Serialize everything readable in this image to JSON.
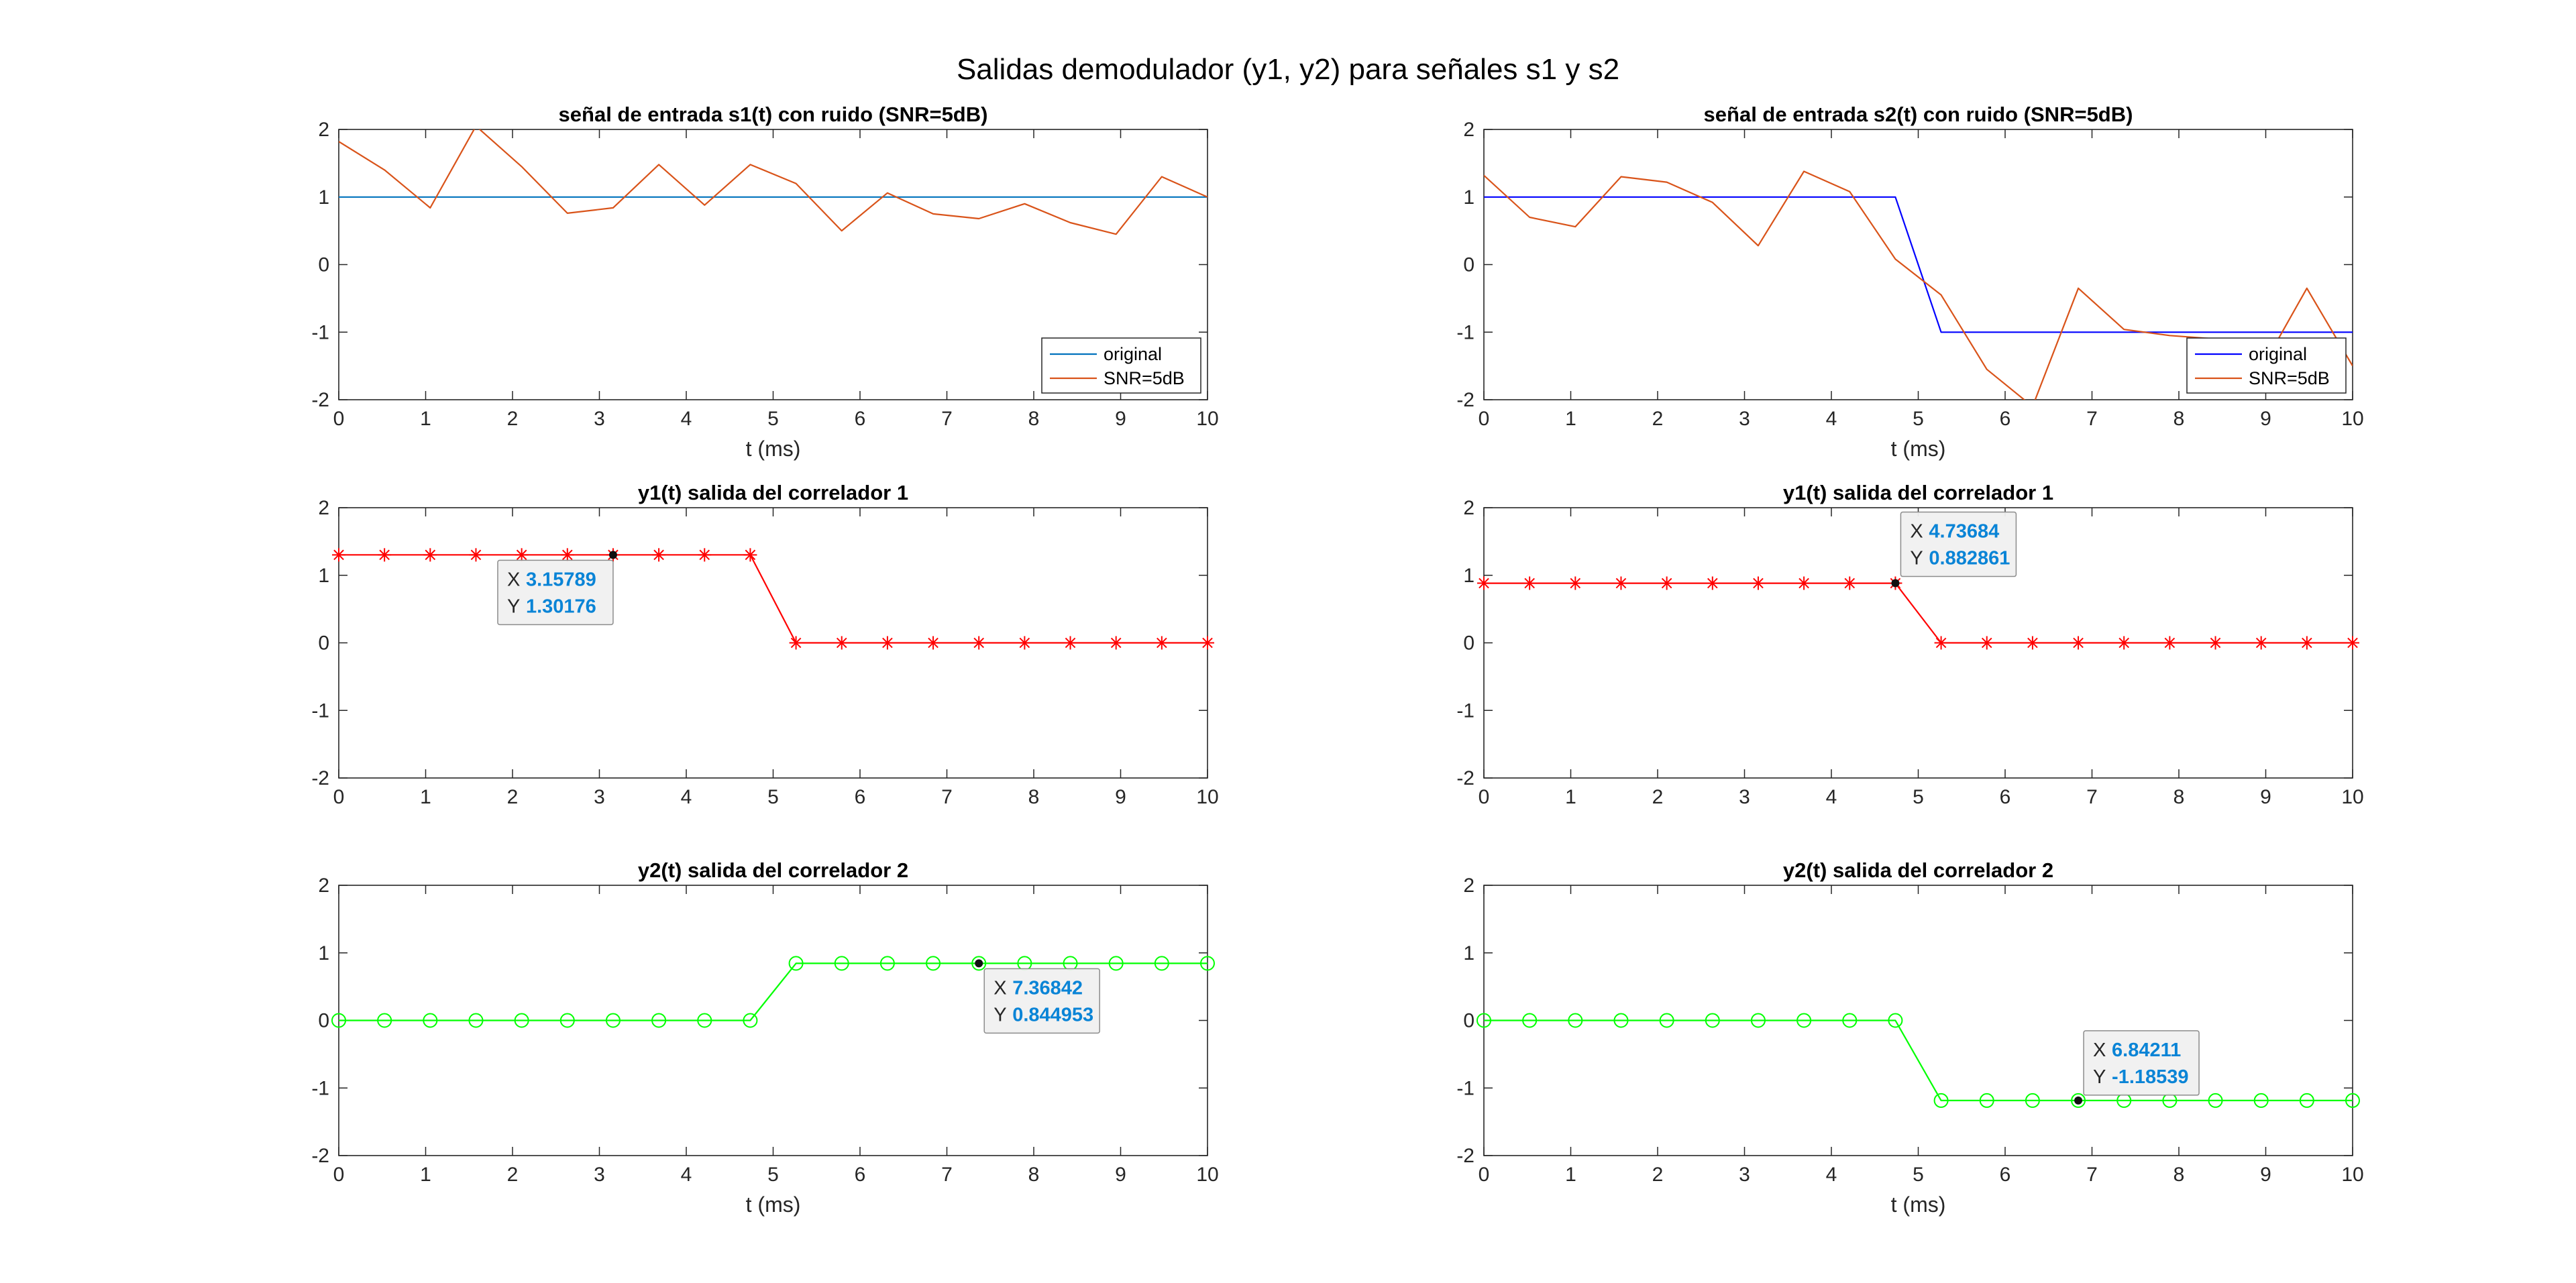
{
  "figure": {
    "suptitle": "Salidas demodulador (y1, y2) para señales s1 y s2"
  },
  "chart_data": [
    {
      "type": "line",
      "title": "señal de entrada s1(t) con ruido (SNR=5dB)",
      "xlabel": "t (ms)",
      "ylabel": "",
      "xlim": [
        0,
        10
      ],
      "ylim": [
        -2,
        2
      ],
      "xticks": [
        "0",
        "1",
        "2",
        "3",
        "4",
        "5",
        "6",
        "7",
        "8",
        "9",
        "10"
      ],
      "yticks": [
        "-2",
        "-1",
        "0",
        "1",
        "2"
      ],
      "grid": false,
      "legend_position": "bottom-right",
      "series": [
        {
          "name": "original",
          "color": "#0072bd",
          "x": [
            0,
            10
          ],
          "y": [
            1,
            1
          ]
        },
        {
          "name": "SNR=5dB",
          "color": "#d95319",
          "x": [
            0,
            0.5263,
            1.0526,
            1.5789,
            2.1053,
            2.6316,
            3.1579,
            3.6842,
            4.2105,
            4.7368,
            5.2632,
            5.7895,
            6.3158,
            6.8421,
            7.3684,
            7.8947,
            8.4211,
            8.9474,
            9.4737,
            10
          ],
          "y": [
            1.82,
            1.4,
            0.84,
            2.05,
            1.45,
            0.76,
            0.84,
            1.48,
            0.88,
            1.48,
            1.2,
            0.5,
            1.06,
            0.75,
            0.68,
            0.9,
            0.62,
            0.45,
            1.3,
            1.0
          ]
        }
      ]
    },
    {
      "type": "line",
      "title": "señal de entrada s2(t) con ruido (SNR=5dB)",
      "xlabel": "t (ms)",
      "ylabel": "",
      "xlim": [
        0,
        10
      ],
      "ylim": [
        -2,
        2
      ],
      "xticks": [
        "0",
        "1",
        "2",
        "3",
        "4",
        "5",
        "6",
        "7",
        "8",
        "9",
        "10"
      ],
      "yticks": [
        "-2",
        "-1",
        "0",
        "1",
        "2"
      ],
      "grid": false,
      "legend_position": "bottom-right",
      "series": [
        {
          "name": "original",
          "color": "#0000ff",
          "x": [
            0,
            4.7368,
            5.2632,
            10
          ],
          "y": [
            1,
            1,
            -1,
            -1
          ]
        },
        {
          "name": "SNR=5dB",
          "color": "#d95319",
          "x": [
            0,
            0.5263,
            1.0526,
            1.5789,
            2.1053,
            2.6316,
            3.1579,
            3.6842,
            4.2105,
            4.7368,
            5.2632,
            5.7895,
            6.3158,
            6.8421,
            7.3684,
            7.8947,
            8.4211,
            8.9474,
            9.4737,
            10
          ],
          "y": [
            1.32,
            0.7,
            0.56,
            1.3,
            1.22,
            0.92,
            0.28,
            1.38,
            1.08,
            0.08,
            -0.45,
            -1.55,
            -2.1,
            -0.35,
            -0.96,
            -1.05,
            -1.1,
            -1.55,
            -0.35,
            -1.5
          ]
        }
      ]
    },
    {
      "type": "line",
      "title": "y1(t) salida del correlador 1",
      "xlabel": "",
      "ylabel": "",
      "xlim": [
        0,
        10
      ],
      "ylim": [
        -2,
        2
      ],
      "xticks": [
        "0",
        "1",
        "2",
        "3",
        "4",
        "5",
        "6",
        "7",
        "8",
        "9",
        "10"
      ],
      "yticks": [
        "-2",
        "-1",
        "0",
        "1",
        "2"
      ],
      "grid": false,
      "marker": "asterisk",
      "series": [
        {
          "color": "#ff0000",
          "x": [
            0,
            0.5263,
            1.0526,
            1.5789,
            2.1053,
            2.6316,
            3.1579,
            3.6842,
            4.2105,
            4.7368,
            5.2632,
            5.7895,
            6.3158,
            6.8421,
            7.3684,
            7.8947,
            8.4211,
            8.9474,
            9.4737,
            10
          ],
          "y": [
            1.30176,
            1.30176,
            1.30176,
            1.30176,
            1.30176,
            1.30176,
            1.30176,
            1.30176,
            1.30176,
            1.30176,
            0,
            0,
            0,
            0,
            0,
            0,
            0,
            0,
            0,
            0
          ]
        }
      ],
      "datatip": {
        "x": "3.15789",
        "y": "1.30176",
        "xval": 3.15789,
        "yval": 1.30176,
        "place": "below"
      }
    },
    {
      "type": "line",
      "title": "y1(t) salida del correlador 1",
      "xlabel": "",
      "ylabel": "",
      "xlim": [
        0,
        10
      ],
      "ylim": [
        -2,
        2
      ],
      "xticks": [
        "0",
        "1",
        "2",
        "3",
        "4",
        "5",
        "6",
        "7",
        "8",
        "9",
        "10"
      ],
      "yticks": [
        "-2",
        "-1",
        "0",
        "1",
        "2"
      ],
      "grid": false,
      "marker": "asterisk",
      "series": [
        {
          "color": "#ff0000",
          "x": [
            0,
            0.5263,
            1.0526,
            1.5789,
            2.1053,
            2.6316,
            3.1579,
            3.6842,
            4.2105,
            4.7368,
            5.2632,
            5.7895,
            6.3158,
            6.8421,
            7.3684,
            7.8947,
            8.4211,
            8.9474,
            9.4737,
            10
          ],
          "y": [
            0.882861,
            0.882861,
            0.882861,
            0.882861,
            0.882861,
            0.882861,
            0.882861,
            0.882861,
            0.882861,
            0.882861,
            0,
            0,
            0,
            0,
            0,
            0,
            0,
            0,
            0,
            0
          ]
        }
      ],
      "datatip": {
        "x": "4.73684",
        "y": "0.882861",
        "xval": 4.73684,
        "yval": 0.882861,
        "place": "above"
      }
    },
    {
      "type": "line",
      "title": "y2(t) salida del correlador 2",
      "xlabel": "t (ms)",
      "ylabel": "",
      "xlim": [
        0,
        10
      ],
      "ylim": [
        -2,
        2
      ],
      "xticks": [
        "0",
        "1",
        "2",
        "3",
        "4",
        "5",
        "6",
        "7",
        "8",
        "9",
        "10"
      ],
      "yticks": [
        "-2",
        "-1",
        "0",
        "1",
        "2"
      ],
      "grid": false,
      "marker": "circle",
      "series": [
        {
          "color": "#00ff00",
          "x": [
            0,
            0.5263,
            1.0526,
            1.5789,
            2.1053,
            2.6316,
            3.1579,
            3.6842,
            4.2105,
            4.7368,
            5.2632,
            5.7895,
            6.3158,
            6.8421,
            7.3684,
            7.8947,
            8.4211,
            8.9474,
            9.4737,
            10
          ],
          "y": [
            0,
            0,
            0,
            0,
            0,
            0,
            0,
            0,
            0,
            0,
            0.844953,
            0.844953,
            0.844953,
            0.844953,
            0.844953,
            0.844953,
            0.844953,
            0.844953,
            0.844953,
            0.844953
          ]
        }
      ],
      "datatip": {
        "x": "7.36842",
        "y": "0.844953",
        "xval": 7.36842,
        "yval": 0.844953,
        "place": "below"
      }
    },
    {
      "type": "line",
      "title": "y2(t) salida del correlador 2",
      "xlabel": "t (ms)",
      "ylabel": "",
      "xlim": [
        0,
        10
      ],
      "ylim": [
        -2,
        2
      ],
      "xticks": [
        "0",
        "1",
        "2",
        "3",
        "4",
        "5",
        "6",
        "7",
        "8",
        "9",
        "10"
      ],
      "yticks": [
        "-2",
        "-1",
        "0",
        "1",
        "2"
      ],
      "grid": false,
      "marker": "circle",
      "series": [
        {
          "color": "#00ff00",
          "x": [
            0,
            0.5263,
            1.0526,
            1.5789,
            2.1053,
            2.6316,
            3.1579,
            3.6842,
            4.2105,
            4.7368,
            5.2632,
            5.7895,
            6.3158,
            6.8421,
            7.3684,
            7.8947,
            8.4211,
            8.9474,
            9.4737,
            10
          ],
          "y": [
            0,
            0,
            0,
            0,
            0,
            0,
            0,
            0,
            0,
            0,
            -1.18539,
            -1.18539,
            -1.18539,
            -1.18539,
            -1.18539,
            -1.18539,
            -1.18539,
            -1.18539,
            -1.18539,
            -1.18539
          ]
        }
      ],
      "datatip": {
        "x": "6.84211",
        "y": "-1.18539",
        "xval": 6.84211,
        "yval": -1.18539,
        "place": "above"
      }
    }
  ]
}
